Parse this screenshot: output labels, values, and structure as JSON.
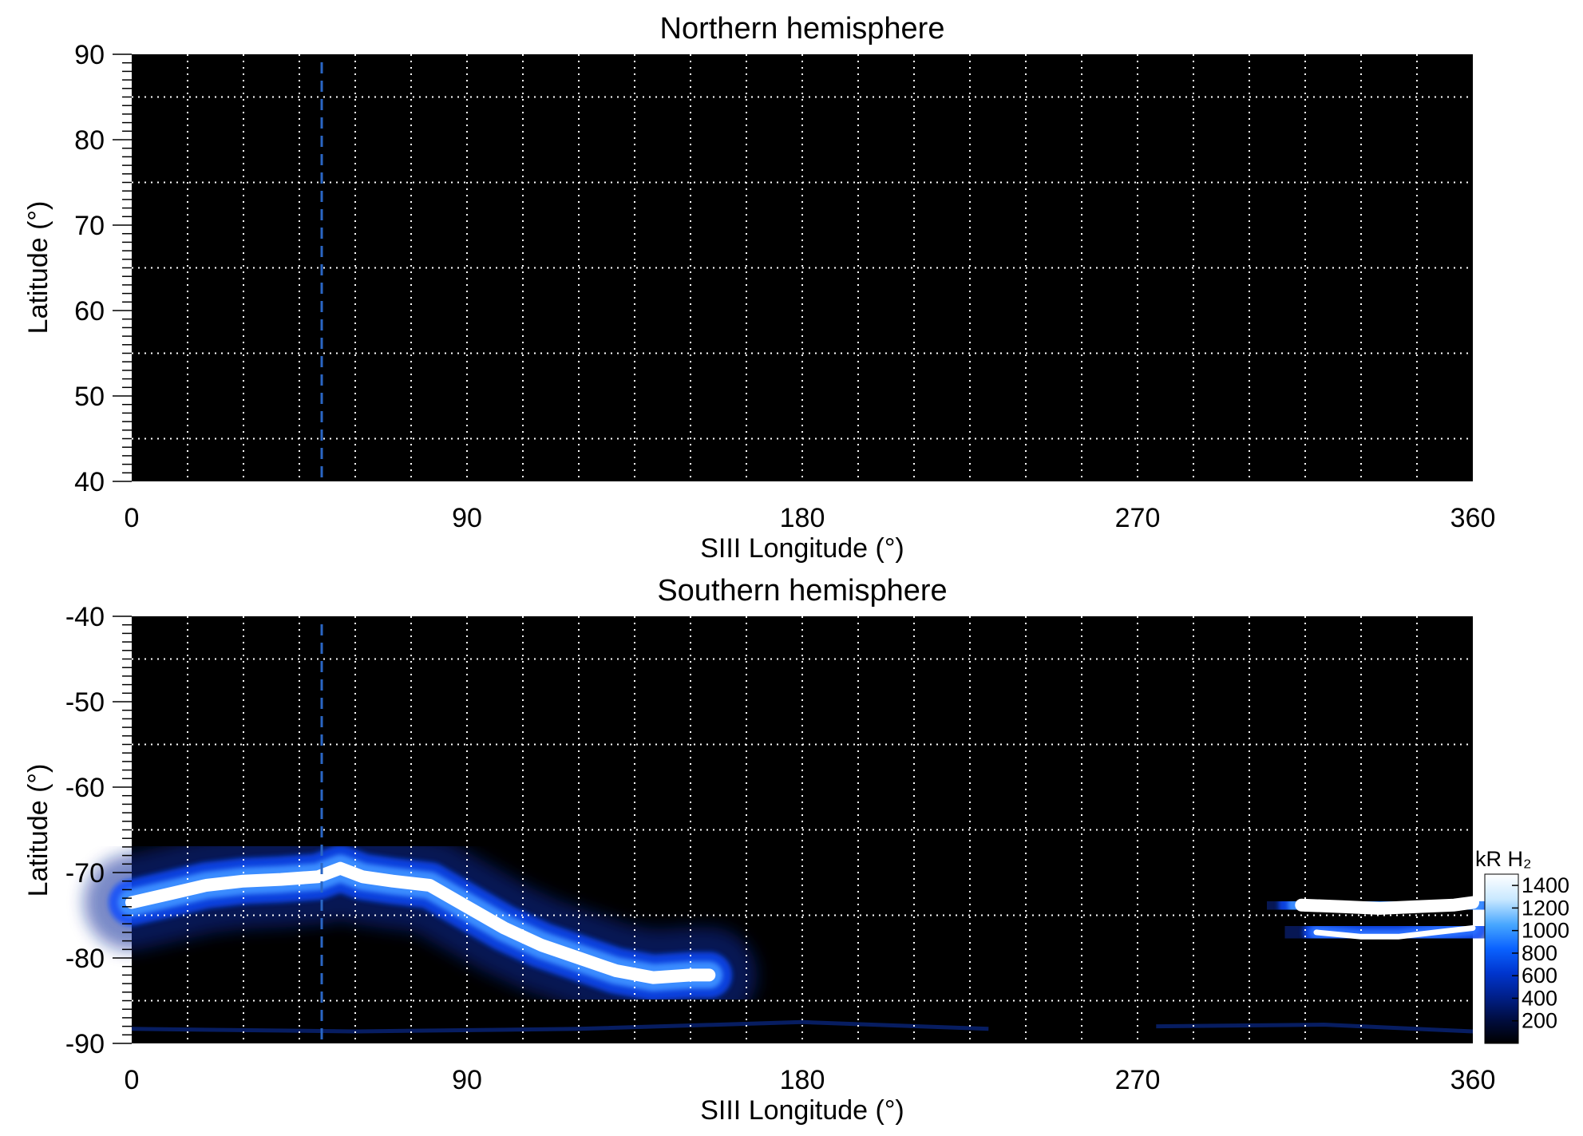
{
  "chart_data": [
    {
      "type": "heatmap",
      "title": "Northern hemisphere",
      "xlabel": "SIII Longitude (°)",
      "ylabel": "Latitude (°)",
      "xlim": [
        0,
        360
      ],
      "ylim": [
        40,
        90
      ],
      "x_ticks": [
        "0",
        "90",
        "180",
        "270",
        "360"
      ],
      "x_tick_values": [
        0,
        90,
        180,
        270,
        360
      ],
      "y_ticks": [
        "90",
        "80",
        "70",
        "60",
        "50",
        "40"
      ],
      "y_tick_values": [
        90,
        80,
        70,
        60,
        50,
        40
      ],
      "grid": true,
      "grid_x_step": 15,
      "grid_y_values": [
        85,
        75,
        65,
        55,
        45
      ],
      "reference_line_longitude": 51,
      "reference_line_color": "#2a66c4",
      "background_color": "#000000",
      "emission_bands": []
    },
    {
      "type": "heatmap",
      "title": "Southern hemisphere",
      "xlabel": "SIII Longitude (°)",
      "ylabel": "Latitude (°)",
      "xlim": [
        0,
        360
      ],
      "ylim": [
        -90,
        -40
      ],
      "x_ticks": [
        "0",
        "90",
        "180",
        "270",
        "360"
      ],
      "x_tick_values": [
        0,
        90,
        180,
        270,
        360
      ],
      "y_ticks": [
        "-40",
        "-50",
        "-60",
        "-70",
        "-80",
        "-90"
      ],
      "y_tick_values": [
        -40,
        -50,
        -60,
        -70,
        -80,
        -90
      ],
      "grid": true,
      "grid_x_step": 15,
      "grid_y_values": [
        -45,
        -55,
        -65,
        -75,
        -85
      ],
      "reference_line_longitude": 51,
      "reference_line_color": "#2a66c4",
      "background_color": "#000000",
      "emission_bands": [
        {
          "name": "main-oval-west",
          "intensity_kR": 1400,
          "points": [
            [
              0,
              -73.5
            ],
            [
              10,
              -72.5
            ],
            [
              20,
              -71.5
            ],
            [
              30,
              -71
            ],
            [
              40,
              -70.8
            ],
            [
              50,
              -70.5
            ],
            [
              56,
              -69.5
            ],
            [
              62,
              -70.5
            ],
            [
              70,
              -71
            ],
            [
              80,
              -71.5
            ],
            [
              90,
              -74
            ],
            [
              100,
              -76.5
            ],
            [
              110,
              -78.5
            ],
            [
              120,
              -80
            ],
            [
              130,
              -81.5
            ],
            [
              140,
              -82.3
            ],
            [
              150,
              -82
            ],
            [
              155,
              -82
            ]
          ]
        },
        {
          "name": "main-oval-east",
          "intensity_kR": 1400,
          "points": [
            [
              314,
              -73.8
            ],
            [
              325,
              -74
            ],
            [
              335,
              -74.2
            ],
            [
              345,
              -74
            ],
            [
              355,
              -73.8
            ],
            [
              360,
              -73.5
            ]
          ]
        },
        {
          "name": "secondary-arc-east",
          "intensity_kR": 1000,
          "points": [
            [
              318,
              -77
            ],
            [
              330,
              -77.5
            ],
            [
              340,
              -77.5
            ],
            [
              350,
              -77
            ],
            [
              360,
              -76.5
            ]
          ]
        }
      ],
      "colorbar": {
        "label": "kR H₂",
        "ticks": [
          "1400",
          "1200",
          "1000",
          "800",
          "600",
          "400",
          "200"
        ],
        "tick_values": [
          1400,
          1200,
          1000,
          800,
          600,
          400,
          200
        ],
        "range": [
          0,
          1500
        ],
        "colors": [
          "#000000",
          "#000d40",
          "#00208c",
          "#0036d0",
          "#0a62ff",
          "#46a6ff",
          "#c8e8ff",
          "#ffffff"
        ]
      }
    }
  ]
}
